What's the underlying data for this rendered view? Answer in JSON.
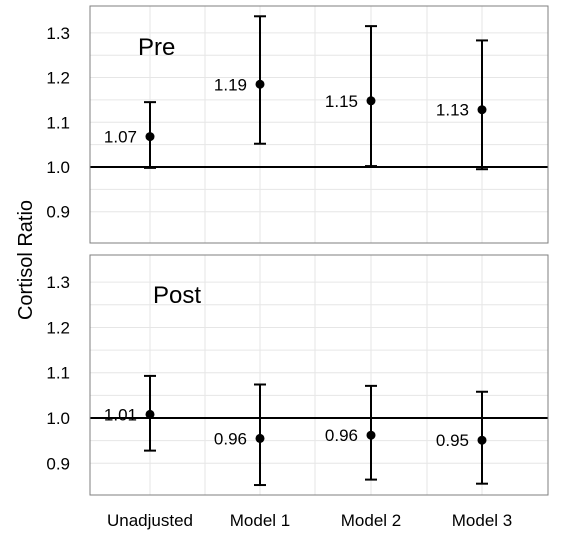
{
  "chart_data": {
    "type": "scatter",
    "ylabel": "Cortisol Ratio",
    "categories": [
      "Unadjusted",
      "Model 1",
      "Model 2",
      "Model 3"
    ],
    "ylim": [
      0.83,
      1.36
    ],
    "yticks": [
      0.9,
      1.0,
      1.1,
      1.2,
      1.3
    ],
    "ytick_labels": [
      "0.9",
      "1.0",
      "1.1",
      "1.2",
      "1.3"
    ],
    "reference_line": 1.0,
    "grid": true,
    "panels": [
      {
        "title": "Pre",
        "estimates": [
          1.068,
          1.185,
          1.148,
          1.128
        ],
        "lower": [
          0.998,
          1.052,
          1.002,
          0.995
        ],
        "upper": [
          1.145,
          1.337,
          1.315,
          1.283
        ],
        "labels": [
          "1.07",
          "1.19",
          "1.15",
          "1.13"
        ]
      },
      {
        "title": "Post",
        "estimates": [
          1.008,
          0.955,
          0.962,
          0.951
        ],
        "lower": [
          0.928,
          0.852,
          0.864,
          0.855
        ],
        "upper": [
          1.093,
          1.074,
          1.071,
          1.058
        ],
        "labels": [
          "1.01",
          "0.96",
          "0.96",
          "0.95"
        ]
      }
    ]
  }
}
